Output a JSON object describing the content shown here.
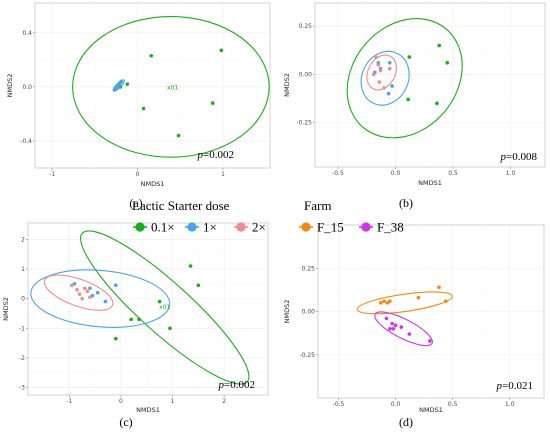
{
  "legend": {
    "groups": [
      {
        "title": "Lactic Starter dose",
        "entries": [
          {
            "label": "0.1×",
            "color": "#1aad1a"
          },
          {
            "label": "1×",
            "color": "#4aa3ea"
          },
          {
            "label": "2×",
            "color": "#f08c8c"
          }
        ]
      },
      {
        "title": "Farm",
        "entries": [
          {
            "label": "F_15",
            "color": "#ef8a16"
          },
          {
            "label": "F_38",
            "color": "#d233e6"
          }
        ]
      }
    ]
  },
  "chart_data": [
    {
      "type": "scatter",
      "panel": "(a)",
      "xlabel": "NMDS1",
      "ylabel": "NMDS2",
      "xlim": [
        -1.2,
        1.55
      ],
      "ylim": [
        -0.6,
        0.62
      ],
      "xticks": [
        -1,
        0,
        1
      ],
      "yticks": [
        -0.4,
        0.0,
        0.4
      ],
      "tick_labels_x": [
        "-1",
        "0",
        "1"
      ],
      "tick_labels_y": [
        "-0.4",
        "0.0",
        "0.4"
      ],
      "p_value": "=0.002",
      "p_symbol": "p",
      "series": [
        {
          "name": "0.1×",
          "color": "#1aad1a",
          "x": [
            0.16,
            0.98,
            -0.12,
            0.07,
            0.88,
            0.48,
            -0.2
          ],
          "y": [
            0.23,
            0.27,
            0.02,
            -0.16,
            -0.12,
            -0.36,
            0.0
          ],
          "ellipse": {
            "cx": 0.39,
            "cy": 0.0,
            "rx": 1.15,
            "ry": 0.52,
            "angle": 0
          }
        },
        {
          "name": "1×",
          "color": "#4aa3ea",
          "x": [
            -0.26,
            -0.24,
            -0.22,
            -0.2,
            -0.19,
            -0.23,
            -0.25
          ],
          "y": [
            -0.02,
            0.0,
            0.02,
            0.03,
            0.04,
            0.01,
            -0.01
          ],
          "ellipse": {
            "cx": -0.22,
            "cy": 0.01,
            "rx": 0.09,
            "ry": 0.017,
            "angle": 45
          }
        }
      ],
      "annotations": [
        {
          "text": "x01",
          "x": 0.41,
          "y": -0.02,
          "color": "#1aad1a"
        }
      ]
    },
    {
      "type": "scatter",
      "panel": "(b)",
      "xlabel": "NMDS1",
      "ylabel": "NMDS2",
      "xlim": [
        -0.7,
        1.3
      ],
      "ylim": [
        -0.48,
        0.37
      ],
      "xticks": [
        -0.5,
        0.0,
        0.5,
        1.0
      ],
      "yticks": [
        -0.25,
        0.0,
        0.25
      ],
      "tick_labels_x": [
        "-0.5",
        "0.0",
        "0.5",
        "1.0"
      ],
      "tick_labels_y": [
        "-0.25",
        "0.00",
        "0.25"
      ],
      "p_value": "=0.008",
      "p_symbol": "p",
      "series": [
        {
          "name": "0.1×",
          "color": "#1aad1a",
          "x": [
            0.38,
            0.12,
            0.45,
            0.36,
            0.11
          ],
          "y": [
            0.15,
            0.09,
            0.06,
            -0.15,
            -0.13
          ],
          "ellipse": {
            "cx": 0.08,
            "cy": -0.02,
            "rx": 0.56,
            "ry": 0.27,
            "angle": 50
          }
        },
        {
          "name": "1×",
          "color": "#4aa3ea",
          "x": [
            -0.15,
            -0.13,
            -0.05,
            -0.03,
            -0.06,
            -0.18
          ],
          "y": [
            0.06,
            0.03,
            0.06,
            -0.06,
            -0.1,
            0.01
          ],
          "ellipse": {
            "cx": -0.09,
            "cy": -0.02,
            "rx": 0.24,
            "ry": 0.12,
            "angle": 65
          }
        },
        {
          "name": "2×",
          "color": "#f08c8c",
          "x": [
            -0.17,
            -0.15,
            -0.13,
            -0.19,
            -0.14,
            -0.05,
            -0.1
          ],
          "y": [
            0.09,
            0.05,
            0.02,
            0.0,
            -0.04,
            0.03,
            -0.07
          ],
          "ellipse": {
            "cx": -0.12,
            "cy": 0.01,
            "rx": 0.16,
            "ry": 0.07,
            "angle": 62
          }
        }
      ],
      "annotations": []
    },
    {
      "type": "scatter",
      "panel": "(c)",
      "xlabel": "NMDS1",
      "ylabel": "NMDS2",
      "xlim": [
        -1.8,
        2.85
      ],
      "ylim": [
        -3.25,
        2.55
      ],
      "xticks": [
        -1,
        0,
        1,
        2
      ],
      "yticks": [
        -3,
        -2,
        -1,
        0,
        1,
        2
      ],
      "tick_labels_x": [
        "-1",
        "0",
        "1",
        "2"
      ],
      "tick_labels_y": [
        "-3",
        "-2",
        "-1",
        "0",
        "1",
        "2"
      ],
      "p_value": "=0.002",
      "p_symbol": "p",
      "series": [
        {
          "name": "0.1×",
          "color": "#1aad1a",
          "x": [
            1.35,
            1.5,
            0.75,
            0.2,
            0.35,
            0.95,
            -0.1
          ],
          "y": [
            1.1,
            0.45,
            -0.1,
            -0.7,
            -0.7,
            -1.0,
            -1.35
          ],
          "ellipse": {
            "cx": 0.85,
            "cy": -0.3,
            "rx": 2.15,
            "ry": 0.85,
            "angle": -42
          }
        },
        {
          "name": "1×",
          "color": "#4aa3ea",
          "x": [
            -0.1,
            -0.9,
            -0.55,
            -0.3,
            -0.45,
            -0.6
          ],
          "y": [
            0.45,
            0.5,
            0.1,
            -0.1,
            0.2,
            0.35
          ],
          "ellipse": {
            "cx": -0.4,
            "cy": 0.0,
            "rx": 1.35,
            "ry": 0.95,
            "angle": -5
          }
        },
        {
          "name": "2×",
          "color": "#f08c8c",
          "x": [
            -0.95,
            -0.85,
            -0.8,
            -0.7,
            -0.6,
            -0.75,
            -0.65
          ],
          "y": [
            0.45,
            0.3,
            0.15,
            0.35,
            0.05,
            0.0,
            0.25
          ],
          "ellipse": {
            "cx": -0.82,
            "cy": 0.2,
            "rx": 0.7,
            "ry": 0.45,
            "angle": -20
          }
        }
      ],
      "annotations": [
        {
          "text": "x01",
          "x": 0.85,
          "y": -0.35,
          "color": "#1aad1a"
        }
      ]
    },
    {
      "type": "scatter",
      "panel": "(d)",
      "xlabel": "NMDS1",
      "ylabel": "NMDS2",
      "xlim": [
        -0.68,
        1.3
      ],
      "ylim": [
        -0.5,
        0.5
      ],
      "xticks": [
        -0.5,
        0.0,
        0.5,
        1.0
      ],
      "yticks": [
        -0.25,
        0.0,
        0.25
      ],
      "tick_labels_x": [
        "-0.5",
        "0.0",
        "0.5",
        "1.0"
      ],
      "tick_labels_y": [
        "-0.25",
        "0.00",
        "0.25"
      ],
      "p_value": "=0.021",
      "p_symbol": "p",
      "series": [
        {
          "name": "F_15",
          "color": "#ef8a16",
          "x": [
            0.38,
            0.44,
            0.2,
            -0.1,
            -0.07,
            -0.13,
            -0.05
          ],
          "y": [
            0.14,
            0.06,
            0.08,
            0.06,
            0.05,
            0.05,
            0.06
          ],
          "ellipse": {
            "cx": 0.08,
            "cy": 0.05,
            "rx": 0.42,
            "ry": 0.05,
            "angle": 8
          }
        },
        {
          "name": "F_38",
          "color": "#d233e6",
          "x": [
            -0.08,
            -0.03,
            0.0,
            -0.05,
            -0.02,
            0.05,
            0.12,
            0.3
          ],
          "y": [
            -0.04,
            -0.07,
            -0.08,
            -0.1,
            -0.1,
            -0.09,
            -0.13,
            -0.17
          ],
          "ellipse": {
            "cx": 0.07,
            "cy": -0.1,
            "rx": 0.28,
            "ry": 0.055,
            "angle": -27
          }
        }
      ],
      "annotations": []
    }
  ]
}
